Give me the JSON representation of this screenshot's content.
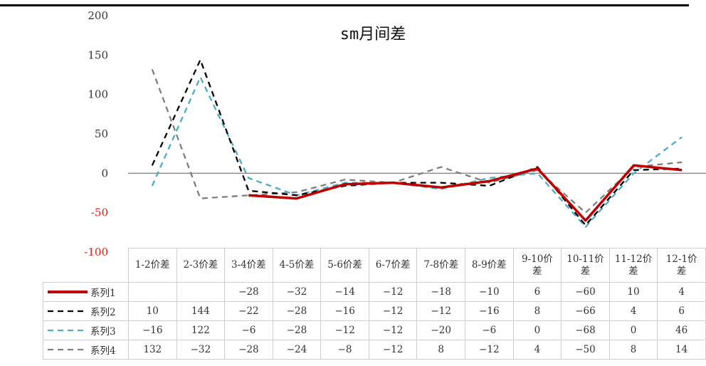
{
  "chart_data": {
    "type": "line",
    "title": "sm月间差",
    "xlabel": "",
    "ylabel": "",
    "ylim": [
      -100,
      200
    ],
    "yticks": [
      200,
      150,
      100,
      50,
      0,
      -50,
      -100
    ],
    "negative_tick_color": "#e0221b",
    "categories": [
      "1-2价差",
      "2-3价差",
      "3-4价差",
      "4-5价差",
      "5-6价差",
      "6-7价差",
      "7-8价差",
      "8-9价差",
      "9-10价差",
      "10-11价差",
      "11-12价差",
      "12-1价差"
    ],
    "series": [
      {
        "name": "系列1",
        "values": [
          null,
          null,
          -28,
          -32,
          -14,
          -12,
          -18,
          -10,
          6,
          -60,
          10,
          4
        ],
        "color": "#c00000",
        "dash": "solid"
      },
      {
        "name": "系列2",
        "values": [
          10,
          144,
          -22,
          -28,
          -16,
          -12,
          -12,
          -16,
          8,
          -66,
          4,
          6
        ],
        "color": "#000000",
        "dash": "dash"
      },
      {
        "name": "系列3",
        "values": [
          -16,
          122,
          -6,
          -28,
          -12,
          -12,
          -20,
          -6,
          0,
          -68,
          0,
          46
        ],
        "color": "#4bacc6",
        "dash": "dash"
      },
      {
        "name": "系列4",
        "values": [
          132,
          -32,
          -28,
          -24,
          -8,
          -12,
          8,
          -12,
          4,
          -50,
          8,
          14
        ],
        "color": "#7f7f7f",
        "dash": "dash"
      }
    ],
    "grid": false,
    "legend": "data-table"
  },
  "category_lines": [
    [
      "1-2价差"
    ],
    [
      "2-3价差"
    ],
    [
      "3-4价差"
    ],
    [
      "4-5价差"
    ],
    [
      "5-6价差"
    ],
    [
      "6-7价差"
    ],
    [
      "7-8价差"
    ],
    [
      "8-9价差"
    ],
    [
      "9-10价",
      "差"
    ],
    [
      "10-11价",
      "差"
    ],
    [
      "11-12价",
      "差"
    ],
    [
      "12-1价",
      "差"
    ]
  ]
}
